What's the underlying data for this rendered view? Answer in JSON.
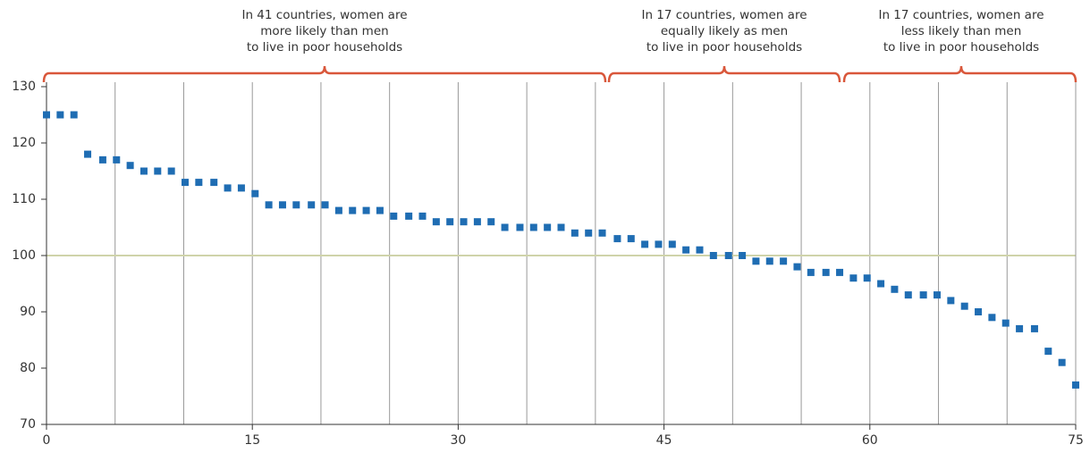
{
  "chart_data": {
    "type": "scatter",
    "annotations": [
      {
        "lines": [
          "In 41 countries, women are",
          "more likely than men",
          "to live in poor households"
        ]
      },
      {
        "lines": [
          "In 17 countries, women are",
          "equally likely as men",
          "to live in poor households"
        ]
      },
      {
        "lines": [
          "In 17 countries, women are",
          "less likely than men",
          "to live in poor households"
        ]
      }
    ],
    "color": "#1f6db3",
    "x": [
      0,
      1,
      2,
      3,
      4.1,
      5.1,
      6.1,
      7.1,
      8.1,
      9.1,
      10.1,
      11.1,
      12.2,
      13.2,
      14.2,
      15.2,
      16.2,
      17.2,
      18.2,
      19.3,
      20.3,
      21.3,
      22.3,
      23.3,
      24.3,
      25.3,
      26.4,
      27.4,
      28.4,
      29.4,
      30.4,
      31.4,
      32.4,
      33.4,
      34.5,
      35.5,
      36.5,
      37.5,
      38.5,
      39.5,
      40.5,
      41.6,
      42.6,
      43.6,
      44.6,
      45.6,
      46.6,
      47.6,
      48.6,
      49.7,
      50.7,
      51.7,
      52.7,
      53.7,
      54.7,
      55.7,
      56.8,
      57.8,
      58.8,
      59.8,
      60.8,
      61.8,
      62.8,
      63.9,
      64.9,
      65.9,
      66.9,
      67.9,
      68.9,
      69.9,
      70.9,
      72,
      73,
      74,
      75
    ],
    "values": [
      125,
      125,
      125,
      118,
      117,
      117,
      116,
      115,
      115,
      115,
      113,
      113,
      113,
      112,
      112,
      111,
      109,
      109,
      109,
      109,
      109,
      108,
      108,
      108,
      108,
      107,
      107,
      107,
      106,
      106,
      106,
      106,
      106,
      105,
      105,
      105,
      105,
      105,
      104,
      104,
      104,
      103,
      103,
      102,
      102,
      102,
      101,
      101,
      100,
      100,
      100,
      99,
      99,
      99,
      98,
      97,
      97,
      97,
      96,
      96,
      95,
      94,
      93,
      93,
      93,
      92,
      91,
      90,
      89,
      88,
      87,
      87,
      83,
      81,
      77
    ],
    "xlim": [
      0,
      75
    ],
    "xticks": [
      0,
      15,
      30,
      45,
      60,
      75
    ],
    "xgrid": [
      5,
      10,
      15,
      20,
      25,
      30,
      35,
      40,
      45,
      50,
      55,
      60,
      65,
      70
    ],
    "ylim": [
      70,
      130
    ],
    "yticks": [
      70,
      80,
      90,
      100,
      110,
      120,
      130
    ],
    "reference_line": 100
  }
}
